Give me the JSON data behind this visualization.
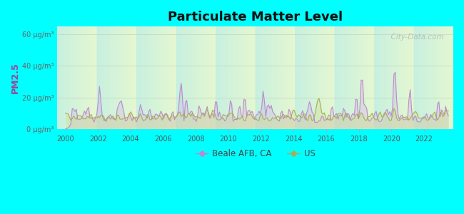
{
  "title": "Particulate Matter Level",
  "ylabel": "PM2.5",
  "xlabel_ticks": [
    2000,
    2002,
    2004,
    2006,
    2008,
    2010,
    2012,
    2014,
    2016,
    2018,
    2020,
    2022
  ],
  "yticks": [
    0,
    20,
    40,
    60
  ],
  "ytick_labels": [
    "0 μg/m³",
    "20 μg/m³",
    "40 μg/m³",
    "60 μg/m³"
  ],
  "ylim": [
    0,
    65
  ],
  "xlim": [
    1999.5,
    2023.8
  ],
  "bg_outer": "#00FFFF",
  "line_beale_color": "#bb88cc",
  "line_us_color": "#aaaa55",
  "fill_color": "#d8f0d0",
  "legend_beale": "Beale AFB, CA",
  "legend_us": "US",
  "watermark": "  City-Data.com",
  "seed": 42
}
